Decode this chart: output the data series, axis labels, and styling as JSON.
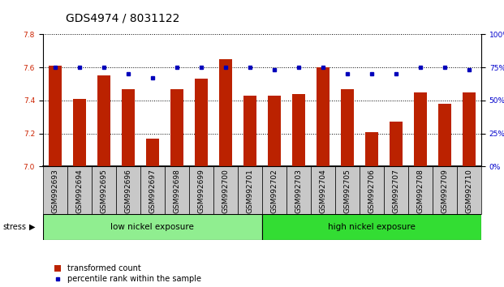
{
  "title": "GDS4974 / 8031122",
  "samples": [
    "GSM992693",
    "GSM992694",
    "GSM992695",
    "GSM992696",
    "GSM992697",
    "GSM992698",
    "GSM992699",
    "GSM992700",
    "GSM992701",
    "GSM992702",
    "GSM992703",
    "GSM992704",
    "GSM992705",
    "GSM992706",
    "GSM992707",
    "GSM992708",
    "GSM992709",
    "GSM992710"
  ],
  "transformed_count": [
    7.61,
    7.41,
    7.55,
    7.47,
    7.17,
    7.47,
    7.53,
    7.65,
    7.43,
    7.43,
    7.44,
    7.6,
    7.47,
    7.21,
    7.27,
    7.45,
    7.38,
    7.45
  ],
  "percentile_rank": [
    75,
    75,
    75,
    70,
    67,
    75,
    75,
    75,
    75,
    73,
    75,
    75,
    70,
    70,
    70,
    75,
    75,
    73
  ],
  "ylim_left": [
    7.0,
    7.8
  ],
  "ylim_right": [
    0,
    100
  ],
  "yticks_left": [
    7.0,
    7.2,
    7.4,
    7.6,
    7.8
  ],
  "yticks_right": [
    0,
    25,
    50,
    75,
    100
  ],
  "low_count": 9,
  "high_count": 9,
  "group_labels": [
    "low nickel exposure",
    "high nickel exposure"
  ],
  "low_color": "#90EE90",
  "high_color": "#33DD33",
  "bar_color": "#BB2200",
  "dot_color": "#0000BB",
  "stress_label": "stress",
  "legend_bar_label": "transformed count",
  "legend_dot_label": "percentile rank within the sample",
  "title_fontsize": 10,
  "tick_fontsize": 6.5,
  "axis_color_left": "#CC2200",
  "axis_color_right": "#0000CC",
  "bar_width": 0.55
}
